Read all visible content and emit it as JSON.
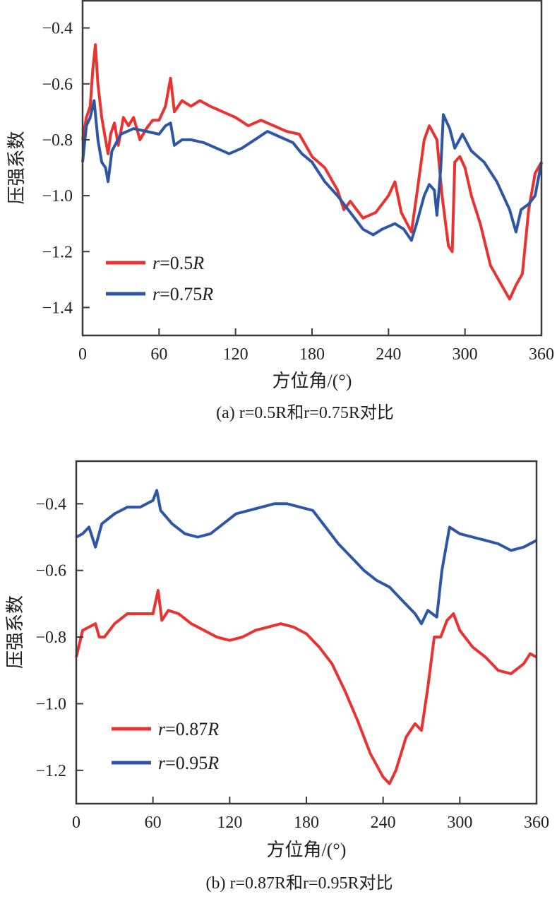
{
  "chart_data": [
    {
      "type": "line",
      "caption": "(a) r=0.5R和r=0.75R对比",
      "xlabel": "方位角/(°)",
      "ylabel": "压强系数",
      "xlim": [
        0,
        360
      ],
      "ylim": [
        -1.5,
        -0.3
      ],
      "xticks": [
        "0",
        "60",
        "120",
        "180",
        "240",
        "300",
        "360"
      ],
      "xtick_values": [
        0,
        60,
        120,
        180,
        240,
        300,
        360
      ],
      "yticks": [
        "-0.4",
        "-0.6",
        "-0.8",
        "-1.0",
        "-1.2",
        "-1.4"
      ],
      "ytick_values": [
        -0.4,
        -0.6,
        -0.8,
        -1.0,
        -1.2,
        -1.4
      ],
      "legend_position": "bottom-left",
      "series": [
        {
          "name": "r=0.5R",
          "name_parts": [
            "r",
            "=0.5",
            "R"
          ],
          "color": "#e83331",
          "x": [
            0,
            3,
            6,
            8,
            10,
            12,
            15,
            18,
            20,
            22,
            25,
            28,
            32,
            36,
            40,
            45,
            50,
            55,
            60,
            65,
            69,
            72,
            78,
            85,
            92,
            100,
            110,
            120,
            130,
            140,
            150,
            160,
            170,
            175,
            180,
            190,
            200,
            205,
            210,
            220,
            230,
            240,
            245,
            250,
            258,
            262,
            268,
            272,
            278,
            282,
            287,
            290,
            292,
            296,
            300,
            305,
            312,
            320,
            330,
            335,
            340,
            345,
            350,
            355,
            360
          ],
          "y": [
            -0.8,
            -0.72,
            -0.68,
            -0.55,
            -0.46,
            -0.6,
            -0.72,
            -0.8,
            -0.85,
            -0.78,
            -0.74,
            -0.82,
            -0.72,
            -0.75,
            -0.72,
            -0.8,
            -0.76,
            -0.73,
            -0.73,
            -0.68,
            -0.58,
            -0.7,
            -0.66,
            -0.68,
            -0.66,
            -0.68,
            -0.7,
            -0.72,
            -0.75,
            -0.73,
            -0.75,
            -0.77,
            -0.78,
            -0.82,
            -0.86,
            -0.9,
            -0.98,
            -1.05,
            -1.02,
            -1.08,
            -1.06,
            -1.0,
            -0.95,
            -1.06,
            -1.13,
            -1.0,
            -0.8,
            -0.75,
            -0.8,
            -1.0,
            -1.18,
            -1.2,
            -0.88,
            -0.86,
            -0.9,
            -1.0,
            -1.1,
            -1.25,
            -1.33,
            -1.37,
            -1.32,
            -1.28,
            -1.05,
            -0.92,
            -0.88
          ]
        },
        {
          "name": "r=0.75R",
          "name_parts": [
            "r",
            "=0.75",
            "R"
          ],
          "color": "#2f56a6",
          "x": [
            0,
            3,
            6,
            9,
            12,
            15,
            18,
            20,
            23,
            30,
            40,
            50,
            60,
            65,
            69,
            72,
            78,
            85,
            95,
            105,
            115,
            125,
            135,
            145,
            155,
            165,
            172,
            180,
            190,
            200,
            210,
            220,
            228,
            235,
            245,
            252,
            258,
            262,
            268,
            272,
            276,
            278,
            281,
            283,
            288,
            292,
            298,
            305,
            315,
            325,
            335,
            340,
            344,
            350,
            355,
            360
          ],
          "y": [
            -0.88,
            -0.75,
            -0.72,
            -0.66,
            -0.8,
            -0.88,
            -0.9,
            -0.95,
            -0.84,
            -0.78,
            -0.76,
            -0.77,
            -0.78,
            -0.75,
            -0.74,
            -0.82,
            -0.8,
            -0.8,
            -0.81,
            -0.83,
            -0.85,
            -0.83,
            -0.8,
            -0.77,
            -0.79,
            -0.81,
            -0.85,
            -0.88,
            -0.95,
            -1.0,
            -1.06,
            -1.12,
            -1.14,
            -1.12,
            -1.1,
            -1.12,
            -1.16,
            -1.1,
            -1.0,
            -0.96,
            -0.98,
            -1.07,
            -0.9,
            -0.71,
            -0.76,
            -0.83,
            -0.78,
            -0.84,
            -0.88,
            -0.95,
            -1.05,
            -1.13,
            -1.05,
            -1.03,
            -1.0,
            -0.88
          ]
        }
      ]
    },
    {
      "type": "line",
      "caption": "(b) r=0.87R和r=0.95R对比",
      "xlabel": "方位角/(°)",
      "ylabel": "压强系数",
      "xlim": [
        0,
        360
      ],
      "ylim": [
        -1.3,
        -0.27
      ],
      "xticks": [
        "0",
        "60",
        "120",
        "180",
        "240",
        "300",
        "360"
      ],
      "xtick_values": [
        0,
        60,
        120,
        180,
        240,
        300,
        360
      ],
      "yticks": [
        "-0.4",
        "-0.6",
        "-0.8",
        "-1.0",
        "-1.2"
      ],
      "ytick_values": [
        -0.4,
        -0.6,
        -0.8,
        -1.0,
        -1.2
      ],
      "legend_position": "bottom-left",
      "series": [
        {
          "name": "r=0.87R",
          "name_parts": [
            "r",
            "=0.87",
            "R"
          ],
          "color": "#e83331",
          "x": [
            0,
            5,
            10,
            15,
            18,
            22,
            30,
            40,
            50,
            60,
            64,
            67,
            72,
            80,
            90,
            100,
            110,
            120,
            130,
            140,
            150,
            160,
            170,
            180,
            190,
            200,
            210,
            220,
            230,
            240,
            245,
            250,
            258,
            265,
            270,
            275,
            280,
            285,
            290,
            295,
            300,
            310,
            320,
            330,
            340,
            350,
            355,
            360
          ],
          "y": [
            -0.86,
            -0.78,
            -0.77,
            -0.76,
            -0.8,
            -0.8,
            -0.76,
            -0.73,
            -0.73,
            -0.73,
            -0.66,
            -0.75,
            -0.72,
            -0.73,
            -0.76,
            -0.78,
            -0.8,
            -0.81,
            -0.8,
            -0.78,
            -0.77,
            -0.76,
            -0.77,
            -0.79,
            -0.83,
            -0.88,
            -0.96,
            -1.05,
            -1.15,
            -1.22,
            -1.24,
            -1.2,
            -1.1,
            -1.06,
            -1.08,
            -0.95,
            -0.8,
            -0.8,
            -0.75,
            -0.73,
            -0.78,
            -0.83,
            -0.86,
            -0.9,
            -0.91,
            -0.88,
            -0.85,
            -0.86
          ]
        },
        {
          "name": "r=0.95R",
          "name_parts": [
            "r",
            "=0.95",
            "R"
          ],
          "color": "#2f56a6",
          "x": [
            0,
            5,
            10,
            15,
            20,
            30,
            40,
            50,
            60,
            63,
            66,
            75,
            85,
            95,
            105,
            115,
            125,
            135,
            145,
            155,
            165,
            175,
            185,
            195,
            205,
            215,
            225,
            235,
            245,
            255,
            265,
            270,
            275,
            282,
            286,
            292,
            300,
            310,
            320,
            330,
            340,
            350,
            360
          ],
          "y": [
            -0.5,
            -0.49,
            -0.47,
            -0.53,
            -0.46,
            -0.43,
            -0.41,
            -0.41,
            -0.39,
            -0.36,
            -0.42,
            -0.46,
            -0.49,
            -0.5,
            -0.49,
            -0.46,
            -0.43,
            -0.42,
            -0.41,
            -0.4,
            -0.4,
            -0.41,
            -0.42,
            -0.47,
            -0.52,
            -0.56,
            -0.6,
            -0.63,
            -0.65,
            -0.69,
            -0.73,
            -0.76,
            -0.72,
            -0.74,
            -0.6,
            -0.47,
            -0.49,
            -0.5,
            -0.51,
            -0.52,
            -0.54,
            -0.53,
            -0.51
          ]
        }
      ]
    }
  ]
}
